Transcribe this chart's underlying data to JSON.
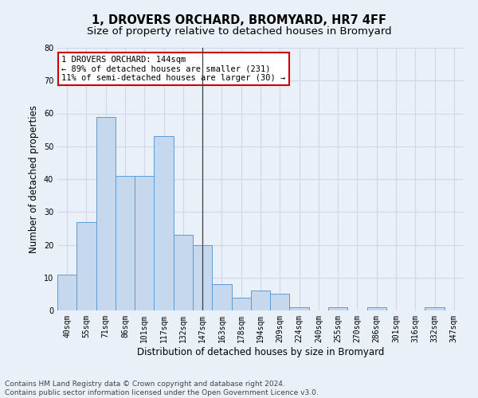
{
  "title": "1, DROVERS ORCHARD, BROMYARD, HR7 4FF",
  "subtitle": "Size of property relative to detached houses in Bromyard",
  "xlabel": "Distribution of detached houses by size in Bromyard",
  "ylabel": "Number of detached properties",
  "bar_labels": [
    "40sqm",
    "55sqm",
    "71sqm",
    "86sqm",
    "101sqm",
    "117sqm",
    "132sqm",
    "147sqm",
    "163sqm",
    "178sqm",
    "194sqm",
    "209sqm",
    "224sqm",
    "240sqm",
    "255sqm",
    "270sqm",
    "286sqm",
    "301sqm",
    "316sqm",
    "332sqm",
    "347sqm"
  ],
  "bar_values": [
    11,
    27,
    59,
    41,
    41,
    53,
    23,
    20,
    8,
    4,
    6,
    5,
    1,
    0,
    1,
    0,
    1,
    0,
    0,
    1,
    0
  ],
  "bar_color": "#c5d8ed",
  "bar_edge_color": "#5b9bd5",
  "highlight_index": 7,
  "highlight_line_color": "#404040",
  "annotation_line1": "1 DROVERS ORCHARD: 144sqm",
  "annotation_line2": "← 89% of detached houses are smaller (231)",
  "annotation_line3": "11% of semi-detached houses are larger (30) →",
  "annotation_box_color": "#ffffff",
  "annotation_box_edge_color": "#cc0000",
  "ylim": [
    0,
    80
  ],
  "yticks": [
    0,
    10,
    20,
    30,
    40,
    50,
    60,
    70,
    80
  ],
  "grid_color": "#d0d8e8",
  "bg_color": "#eaf0f8",
  "footer_text": "Contains HM Land Registry data © Crown copyright and database right 2024.\nContains public sector information licensed under the Open Government Licence v3.0.",
  "title_fontsize": 10.5,
  "subtitle_fontsize": 9.5,
  "xlabel_fontsize": 8.5,
  "ylabel_fontsize": 8.5,
  "tick_fontsize": 7,
  "annotation_fontsize": 7.5,
  "footer_fontsize": 6.5
}
